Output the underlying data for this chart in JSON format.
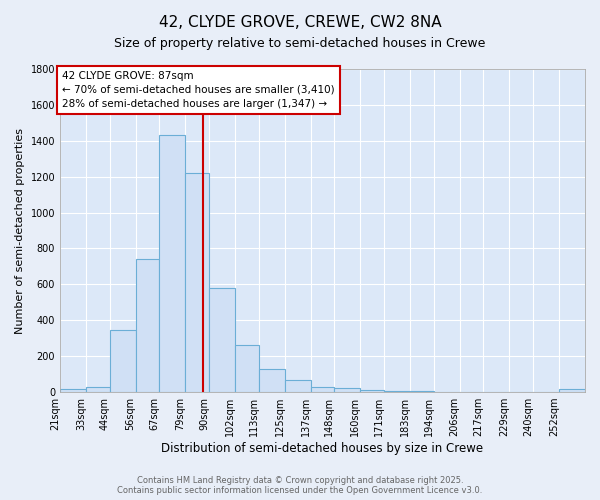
{
  "title": "42, CLYDE GROVE, CREWE, CW2 8NA",
  "subtitle": "Size of property relative to semi-detached houses in Crewe",
  "xlabel": "Distribution of semi-detached houses by size in Crewe",
  "ylabel": "Number of semi-detached properties",
  "bin_labels": [
    "21sqm",
    "33sqm",
    "44sqm",
    "56sqm",
    "67sqm",
    "79sqm",
    "90sqm",
    "102sqm",
    "113sqm",
    "125sqm",
    "137sqm",
    "148sqm",
    "160sqm",
    "171sqm",
    "183sqm",
    "194sqm",
    "206sqm",
    "217sqm",
    "229sqm",
    "240sqm",
    "252sqm"
  ],
  "values": [
    15,
    30,
    345,
    740,
    1435,
    1220,
    580,
    260,
    130,
    65,
    30,
    25,
    10,
    5,
    5,
    3,
    3,
    3,
    3,
    3,
    15
  ],
  "bar_color": "#d0e0f5",
  "bar_edge_color": "#6baed6",
  "vline_x": 87,
  "vline_color": "#cc0000",
  "annotation_text": "42 CLYDE GROVE: 87sqm\n← 70% of semi-detached houses are smaller (3,410)\n28% of semi-detached houses are larger (1,347) →",
  "annotation_box_color": "#cc0000",
  "annotation_bg_color": "#ffffff",
  "ylim": [
    0,
    1800
  ],
  "yticks": [
    0,
    200,
    400,
    600,
    800,
    1000,
    1200,
    1400,
    1600,
    1800
  ],
  "footer_text": "Contains HM Land Registry data © Crown copyright and database right 2025.\nContains public sector information licensed under the Open Government Licence v3.0.",
  "bg_color": "#e8eef8",
  "plot_bg_color": "#dce8f8",
  "grid_color": "#ffffff",
  "title_fontsize": 11,
  "subtitle_fontsize": 9,
  "tick_fontsize": 7,
  "ylabel_fontsize": 8,
  "xlabel_fontsize": 8.5,
  "annot_fontsize": 7.5,
  "footer_fontsize": 6,
  "bin_edges": [
    21,
    33,
    44,
    56,
    67,
    79,
    90,
    102,
    113,
    125,
    137,
    148,
    160,
    171,
    183,
    194,
    206,
    217,
    229,
    240,
    252
  ]
}
